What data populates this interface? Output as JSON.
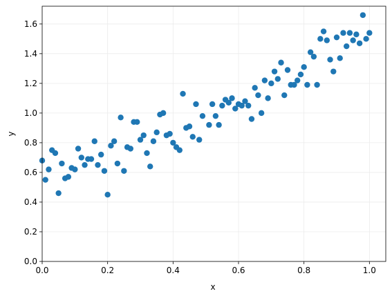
{
  "chart_data": {
    "type": "scatter",
    "x_label": "x",
    "y_label": "y",
    "color": "#1f77b4",
    "grid": true,
    "xlim": [
      0,
      1.05
    ],
    "ylim": [
      0,
      1.72
    ],
    "xticks": [
      {
        "value": 0,
        "label": "0.0"
      },
      {
        "value": 0.2,
        "label": "0.2"
      },
      {
        "value": 0.4,
        "label": "0.4"
      },
      {
        "value": 0.6,
        "label": "0.6"
      },
      {
        "value": 0.8,
        "label": "0.8"
      },
      {
        "value": 1,
        "label": "1.0"
      }
    ],
    "yticks": [
      {
        "value": 0,
        "label": "0.0"
      },
      {
        "value": 0.2,
        "label": "0.2"
      },
      {
        "value": 0.4,
        "label": "0.4"
      },
      {
        "value": 0.6,
        "label": "0.6"
      },
      {
        "value": 0.8,
        "label": "0.8"
      },
      {
        "value": 1,
        "label": "1.0"
      },
      {
        "value": 1.2,
        "label": "1.2"
      },
      {
        "value": 1.4,
        "label": "1.4"
      },
      {
        "value": 1.6,
        "label": "1.6"
      }
    ],
    "x": [
      0,
      0.01,
      0.02,
      0.03,
      0.04,
      0.05,
      0.06,
      0.07,
      0.08,
      0.09,
      0.1,
      0.11,
      0.12,
      0.13,
      0.14,
      0.15,
      0.16,
      0.17,
      0.18,
      0.19,
      0.2,
      0.21,
      0.22,
      0.23,
      0.24,
      0.25,
      0.26,
      0.27,
      0.28,
      0.29,
      0.3,
      0.31,
      0.32,
      0.33,
      0.34,
      0.35,
      0.36,
      0.37,
      0.38,
      0.39,
      0.4,
      0.41,
      0.42,
      0.43,
      0.44,
      0.45,
      0.46,
      0.47,
      0.48,
      0.49,
      0.51,
      0.52,
      0.53,
      0.54,
      0.55,
      0.56,
      0.57,
      0.58,
      0.59,
      0.6,
      0.61,
      0.62,
      0.63,
      0.64,
      0.65,
      0.66,
      0.67,
      0.68,
      0.69,
      0.7,
      0.71,
      0.72,
      0.73,
      0.74,
      0.75,
      0.76,
      0.77,
      0.78,
      0.79,
      0.8,
      0.81,
      0.82,
      0.83,
      0.84,
      0.85,
      0.86,
      0.87,
      0.88,
      0.89,
      0.9,
      0.91,
      0.92,
      0.93,
      0.94,
      0.95,
      0.96,
      0.97,
      0.98,
      0.99,
      1.0
    ],
    "y": [
      0.68,
      0.55,
      0.62,
      0.75,
      0.73,
      0.46,
      0.66,
      0.56,
      0.57,
      0.63,
      0.62,
      0.76,
      0.7,
      0.65,
      0.69,
      0.69,
      0.81,
      0.65,
      0.72,
      0.61,
      0.45,
      0.78,
      0.81,
      0.66,
      0.97,
      0.61,
      0.77,
      0.76,
      0.94,
      0.94,
      0.82,
      0.85,
      0.73,
      0.64,
      0.81,
      0.87,
      0.99,
      1.0,
      0.85,
      0.86,
      0.8,
      0.77,
      0.75,
      1.13,
      0.9,
      0.91,
      0.84,
      1.06,
      0.82,
      0.98,
      0.92,
      1.06,
      0.98,
      0.92,
      1.05,
      1.09,
      1.07,
      1.1,
      1.03,
      1.06,
      1.05,
      1.08,
      1.05,
      0.96,
      1.17,
      1.12,
      1.0,
      1.22,
      1.1,
      1.2,
      1.28,
      1.23,
      1.34,
      1.12,
      1.29,
      1.19,
      1.19,
      1.22,
      1.26,
      1.31,
      1.19,
      1.41,
      1.38,
      1.19,
      1.5,
      1.55,
      1.49,
      1.36,
      1.28,
      1.51,
      1.37,
      1.54,
      1.45,
      1.54,
      1.49,
      1.53,
      1.47,
      1.66,
      1.5,
      1.54
    ]
  }
}
